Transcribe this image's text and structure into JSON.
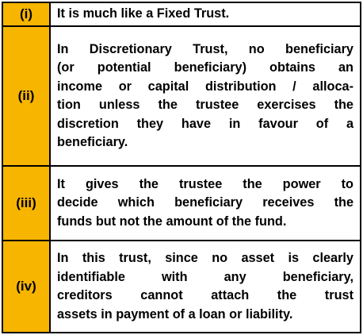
{
  "table": {
    "rows": [
      {
        "label": "(i)",
        "lines": [
          "It is much like a Fixed Trust."
        ]
      },
      {
        "label": "(ii)",
        "lines": [
          "In Discretionary Trust, no beneficiary",
          "(or potential beneficiary) obtains an",
          "income or capital distribution / alloca-",
          "tion unless the trustee exercises the",
          "discretion they have in favour of a",
          "beneficiary."
        ]
      },
      {
        "label": "(iii)",
        "lines": [
          "It gives the trustee the power to",
          "decide which beneficiary receives the",
          "funds but not the amount of the fund."
        ]
      },
      {
        "label": "(iv)",
        "lines": [
          "In this trust, since no asset is clearly",
          "identifiable with any beneficiary,",
          "creditors cannot attach the trust",
          "assets in payment of a loan or liability."
        ]
      }
    ]
  }
}
